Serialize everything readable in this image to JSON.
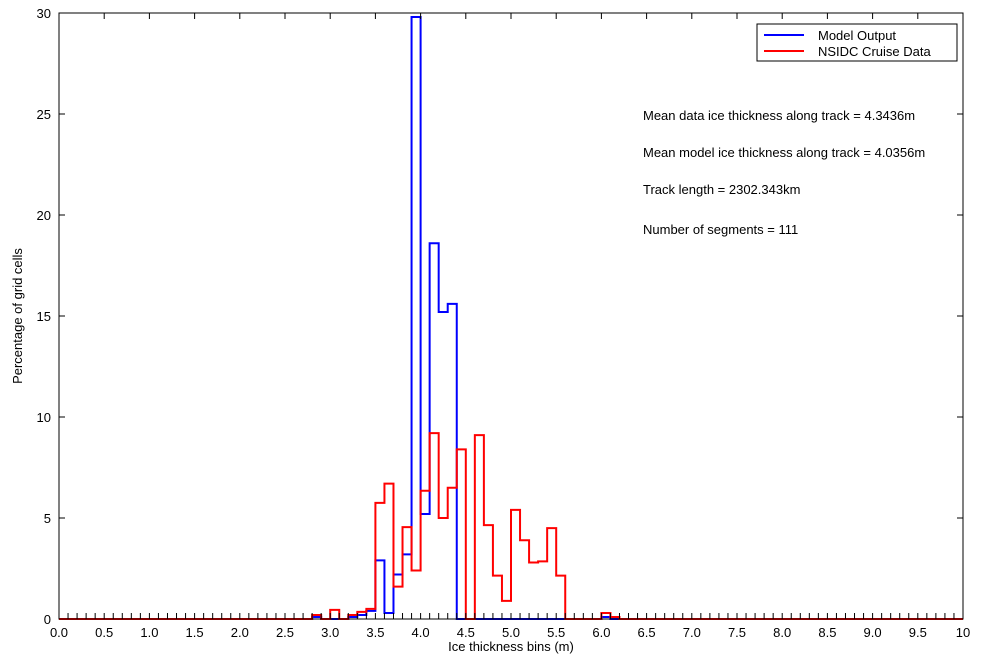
{
  "chart_data": {
    "type": "histogram-stairs",
    "title": "",
    "xlabel": "Ice thickness bins (m)",
    "ylabel": "Percentage of grid cells",
    "xlim": [
      0,
      10
    ],
    "ylim": [
      0,
      30
    ],
    "x_ticks": [
      "0.0",
      "0.5",
      "1.0",
      "1.5",
      "2.0",
      "2.5",
      "3.0",
      "3.5",
      "4.0",
      "4.5",
      "5.0",
      "5.5",
      "6.0",
      "6.5",
      "7.0",
      "7.5",
      "8.0",
      "8.5",
      "9.0",
      "9.5",
      "10"
    ],
    "x_tick_values": [
      0,
      0.5,
      1,
      1.5,
      2,
      2.5,
      3,
      3.5,
      4,
      4.5,
      5,
      5.5,
      6,
      6.5,
      7,
      7.5,
      8,
      8.5,
      9,
      9.5,
      10
    ],
    "y_ticks": [
      "0",
      "5",
      "10",
      "15",
      "20",
      "25",
      "30"
    ],
    "y_tick_values": [
      0,
      5,
      10,
      15,
      20,
      25,
      30
    ],
    "grid": false,
    "legend_position": "top-right",
    "bin_width": 0.1,
    "bins_start": [
      0.0,
      0.1,
      0.2,
      0.3,
      0.4,
      0.5,
      0.6,
      0.7,
      0.8,
      0.9,
      1.0,
      1.1,
      1.2,
      1.3,
      1.4,
      1.5,
      1.6,
      1.7,
      1.8,
      1.9,
      2.0,
      2.1,
      2.2,
      2.3,
      2.4,
      2.5,
      2.6,
      2.7,
      2.8,
      2.9,
      3.0,
      3.1,
      3.2,
      3.3,
      3.4,
      3.5,
      3.6,
      3.7,
      3.8,
      3.9,
      4.0,
      4.1,
      4.2,
      4.3,
      4.4,
      4.5,
      4.6,
      4.7,
      4.8,
      4.9,
      5.0,
      5.1,
      5.2,
      5.3,
      5.4,
      5.5,
      5.6,
      5.7,
      5.8,
      5.9,
      6.0,
      6.1,
      6.2,
      6.3,
      6.4,
      6.5,
      6.6,
      6.7,
      6.8,
      6.9,
      7.0,
      7.1,
      7.2,
      7.3,
      7.4,
      7.5,
      7.6,
      7.7,
      7.8,
      7.9,
      8.0,
      8.1,
      8.2,
      8.3,
      8.4,
      8.5,
      8.6,
      8.7,
      8.8,
      8.9,
      9.0,
      9.1,
      9.2,
      9.3,
      9.4,
      9.5,
      9.6,
      9.7,
      9.8,
      9.9
    ],
    "series": [
      {
        "name": "Model Output",
        "color": "#0000ff",
        "values": [
          0,
          0,
          0,
          0,
          0,
          0,
          0,
          0,
          0,
          0,
          0,
          0,
          0,
          0,
          0,
          0,
          0,
          0,
          0,
          0,
          0,
          0,
          0,
          0,
          0,
          0,
          0,
          0,
          0.1,
          0,
          0,
          0,
          0.1,
          0.2,
          0.4,
          2.9,
          0.3,
          2.2,
          3.2,
          29.8,
          5.2,
          18.6,
          15.2,
          15.6,
          0,
          0,
          0,
          0,
          0,
          0,
          0,
          0,
          0,
          0,
          0,
          0,
          0,
          0,
          0,
          0,
          0.1,
          0,
          0,
          0,
          0,
          0,
          0,
          0,
          0,
          0,
          0,
          0,
          0,
          0,
          0,
          0,
          0,
          0,
          0,
          0,
          0,
          0,
          0,
          0,
          0,
          0,
          0,
          0,
          0,
          0,
          0,
          0,
          0,
          0,
          0,
          0,
          0,
          0,
          0,
          0
        ]
      },
      {
        "name": "NSIDC Cruise Data",
        "color": "#ff0000",
        "values": [
          0,
          0,
          0,
          0,
          0,
          0,
          0,
          0,
          0,
          0,
          0,
          0,
          0,
          0,
          0,
          0,
          0,
          0,
          0,
          0,
          0,
          0,
          0,
          0,
          0,
          0,
          0,
          0,
          0.2,
          0,
          0.45,
          0,
          0.2,
          0.35,
          0.5,
          5.75,
          6.7,
          1.6,
          4.55,
          2.4,
          6.35,
          9.2,
          5.0,
          6.5,
          8.4,
          0,
          9.1,
          4.65,
          2.15,
          0.9,
          5.4,
          3.9,
          2.8,
          2.85,
          4.5,
          2.15,
          0,
          0,
          0,
          0,
          0.3,
          0.1,
          0,
          0,
          0,
          0,
          0,
          0,
          0,
          0,
          0,
          0,
          0,
          0,
          0,
          0,
          0,
          0,
          0,
          0,
          0,
          0,
          0,
          0,
          0,
          0,
          0,
          0,
          0,
          0,
          0,
          0,
          0,
          0,
          0,
          0,
          0,
          0,
          0,
          0
        ]
      }
    ],
    "annotations": [
      "Mean data ice thickness along track = 4.3436m",
      "Mean model ice thickness along track = 4.0356m",
      "Track length = 2302.343km",
      "Number of segments = 111"
    ]
  }
}
